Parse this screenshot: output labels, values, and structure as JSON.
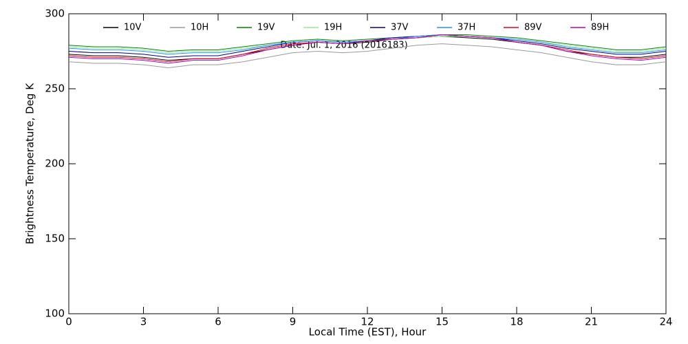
{
  "chart_data": {
    "type": "line",
    "annotation": "Date: Jul. 1, 2016 (2016183)",
    "x_label": "Local Time (EST), Hour",
    "y_label": "Brightness Temperature, Deg K",
    "x": [
      0,
      1,
      2,
      3,
      4,
      5,
      6,
      7,
      8,
      9,
      10,
      11,
      12,
      13,
      14,
      15,
      16,
      17,
      18,
      19,
      20,
      21,
      22,
      23,
      24
    ],
    "xlim": [
      0,
      24
    ],
    "xticks": [
      0,
      3,
      6,
      9,
      12,
      15,
      18,
      21,
      24
    ],
    "ylim": [
      100,
      300
    ],
    "yticks": [
      100,
      150,
      200,
      250,
      300
    ],
    "series": [
      {
        "name": "10V",
        "color": "#000000",
        "values": [
          273,
          272,
          272,
          271,
          269,
          270,
          270,
          273,
          276,
          279,
          281,
          280,
          281,
          283,
          284,
          285,
          284,
          283,
          281,
          279,
          275,
          273,
          271,
          271,
          273
        ]
      },
      {
        "name": "10H",
        "color": "#999999",
        "values": [
          268,
          267,
          267,
          266,
          264,
          266,
          266,
          268,
          271,
          274,
          275,
          274,
          275,
          277,
          279,
          280,
          279,
          278,
          276,
          274,
          271,
          268,
          266,
          266,
          268
        ]
      },
      {
        "name": "19V",
        "color": "#008000",
        "values": [
          279,
          278,
          278,
          277,
          275,
          276,
          276,
          278,
          280,
          282,
          283,
          282,
          283,
          284,
          285,
          286,
          286,
          285,
          284,
          282,
          280,
          278,
          276,
          276,
          278
        ]
      },
      {
        "name": "19H",
        "color": "#90ee90",
        "values": [
          278,
          277,
          277,
          276,
          274,
          275,
          275,
          277,
          279,
          281,
          282,
          281,
          282,
          283,
          284,
          285,
          285,
          284,
          283,
          281,
          279,
          277,
          275,
          275,
          277
        ]
      },
      {
        "name": "37V",
        "color": "#000080",
        "values": [
          275,
          274,
          274,
          273,
          271,
          272,
          272,
          275,
          278,
          281,
          282,
          281,
          282,
          284,
          285,
          286,
          285,
          284,
          282,
          280,
          277,
          275,
          273,
          273,
          275
        ]
      },
      {
        "name": "37H",
        "color": "#1e90ff",
        "values": [
          277,
          276,
          276,
          275,
          273,
          274,
          274,
          276,
          279,
          281,
          282,
          281,
          282,
          283,
          285,
          286,
          285,
          284,
          283,
          281,
          278,
          276,
          274,
          274,
          276
        ]
      },
      {
        "name": "89V",
        "color": "#e8001c",
        "values": [
          272,
          271,
          271,
          270,
          268,
          270,
          270,
          273,
          277,
          280,
          281,
          280,
          282,
          283,
          284,
          286,
          285,
          284,
          281,
          279,
          276,
          273,
          271,
          270,
          272
        ]
      },
      {
        "name": "89H",
        "color": "#b000b0",
        "values": [
          271,
          270,
          270,
          269,
          267,
          269,
          269,
          272,
          276,
          279,
          281,
          280,
          282,
          283,
          284,
          286,
          285,
          284,
          281,
          279,
          275,
          272,
          270,
          269,
          271
        ]
      }
    ]
  }
}
